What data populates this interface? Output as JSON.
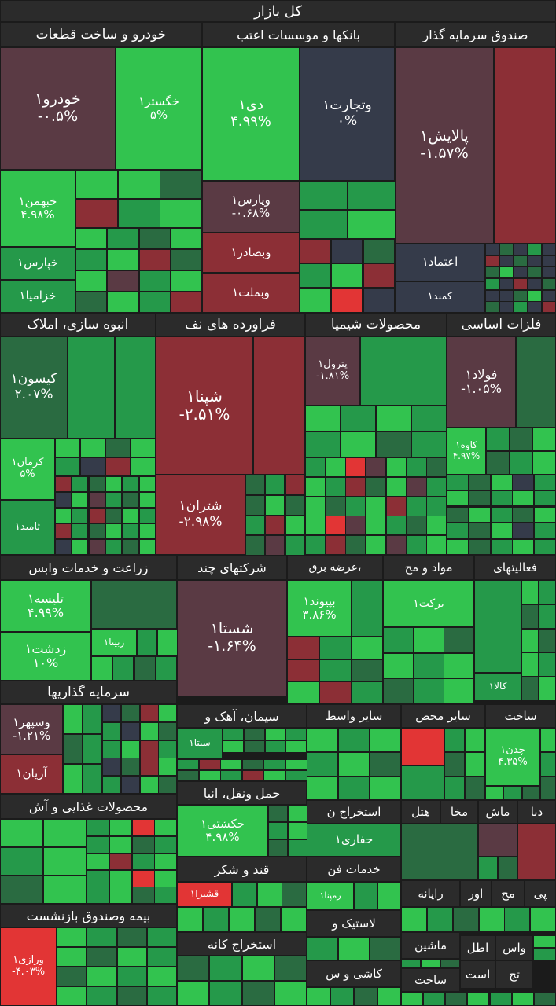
{
  "title": "کل بازار",
  "palette": {
    "grey": "#2b2b2b",
    "pos_strong": "#32c34f",
    "pos_mid": "#25994a",
    "pos_dark": "#2a6b41",
    "neutral": "#353b4a",
    "neg_soft": "#5a3a44",
    "neg_mid": "#8c2f36",
    "neg_strong": "#e23535"
  },
  "sectors": [
    {
      "id": "auto",
      "name": "خودرو و ساخت قطعات"
    },
    {
      "id": "banks",
      "name": "بانکها و موسسات اعتب"
    },
    {
      "id": "funds",
      "name": "صندوق سرمایه گذار"
    },
    {
      "id": "mass",
      "name": "انبوه سازی، املاک"
    },
    {
      "id": "oil",
      "name": "فراورده های نف"
    },
    {
      "id": "chem",
      "name": "محصولات شیمیا"
    },
    {
      "id": "metals",
      "name": "فلزات اساسی"
    },
    {
      "id": "agri",
      "name": "زراعت و خدمات وابس"
    },
    {
      "id": "multi",
      "name": "شرکتهای چند"
    },
    {
      "id": "power",
      "name": "،عرضه برق"
    },
    {
      "id": "material",
      "name": "مواد و مح"
    },
    {
      "id": "activities",
      "name": "فعالیتهای"
    },
    {
      "id": "invest",
      "name": "سرمایه گذاریها"
    },
    {
      "id": "cement",
      "name": "سیمان، آهک و"
    },
    {
      "id": "othermid",
      "name": "سایر واسط"
    },
    {
      "id": "otherprod",
      "name": "سایر محص"
    },
    {
      "id": "build",
      "name": "ساخت"
    },
    {
      "id": "transport",
      "name": "حمل ونقل، انبا"
    },
    {
      "id": "extract",
      "name": "استخراج ن"
    },
    {
      "id": "hotel",
      "name": "هتل"
    },
    {
      "id": "makha",
      "name": "مخا"
    },
    {
      "id": "mash",
      "name": "ماش"
    },
    {
      "id": "daba",
      "name": "دبا"
    },
    {
      "id": "food",
      "name": "محصولات غذایی و آش"
    },
    {
      "id": "sugar",
      "name": "قند و شکر"
    },
    {
      "id": "techserv",
      "name": "خدمات فن"
    },
    {
      "id": "computer",
      "name": "رایانه"
    },
    {
      "id": "or",
      "name": "اور"
    },
    {
      "id": "mah",
      "name": "مح"
    },
    {
      "id": "pi",
      "name": "پی"
    },
    {
      "id": "rubber",
      "name": "لاستیک و"
    },
    {
      "id": "machinery",
      "name": "ماشین"
    },
    {
      "id": "vas",
      "name": "واس"
    },
    {
      "id": "atl",
      "name": "اطل"
    },
    {
      "id": "insurance",
      "name": "بیمه وصندوق بازنشست"
    },
    {
      "id": "mine",
      "name": "استخراج کانه"
    },
    {
      "id": "tile",
      "name": "کاشی و س"
    },
    {
      "id": "const",
      "name": "ساخت"
    },
    {
      "id": "ast",
      "name": "است"
    },
    {
      "id": "taj",
      "name": "تج"
    }
  ],
  "stocks": [
    {
      "id": "khodro",
      "name": "خودرو۱",
      "pct": "-۰.۵%"
    },
    {
      "id": "khegostar",
      "name": "خگستر۱",
      "pct": "۵%"
    },
    {
      "id": "khbahman",
      "name": "خبهمن۱",
      "pct": "۴.۹۸%"
    },
    {
      "id": "khpars",
      "name": "خپارس۱",
      "pct": ""
    },
    {
      "id": "khzamia",
      "name": "خزامیا۱",
      "pct": ""
    },
    {
      "id": "dey",
      "name": "دی۱",
      "pct": "۴.۹۹%"
    },
    {
      "id": "vtejarat",
      "name": "وتجارت۱",
      "pct": "۰%"
    },
    {
      "id": "vpars",
      "name": "وپارس۱",
      "pct": "-۰.۶۸%"
    },
    {
      "id": "vbsadr",
      "name": "وبصادر۱",
      "pct": ""
    },
    {
      "id": "vbmellat",
      "name": "وبملت۱",
      "pct": ""
    },
    {
      "id": "palaesh",
      "name": "پالایش۱",
      "pct": "-۱.۵۷%"
    },
    {
      "id": "etemad",
      "name": "اعتماد۱",
      "pct": ""
    },
    {
      "id": "kamand",
      "name": "کمند۱",
      "pct": ""
    },
    {
      "id": "kisun",
      "name": "کیسون۱",
      "pct": "۲.۰۷%"
    },
    {
      "id": "kerman",
      "name": "کرمان۱",
      "pct": "۵%"
    },
    {
      "id": "tamid",
      "name": "ثامید۱",
      "pct": ""
    },
    {
      "id": "shepna",
      "name": "شپنا۱",
      "pct": "-۲.۵۱%"
    },
    {
      "id": "shetran",
      "name": "شتران۱",
      "pct": "-۲.۹۸%"
    },
    {
      "id": "petrol",
      "name": "پترول۱",
      "pct": "-۱.۸۱%"
    },
    {
      "id": "foolad",
      "name": "فولاد۱",
      "pct": "-۱.۰۵%"
    },
    {
      "id": "kaveh",
      "name": "کاوه۱",
      "pct": "۴.۹۷%"
    },
    {
      "id": "talise",
      "name": "تلیسه۱",
      "pct": "۴.۹۹%"
    },
    {
      "id": "zarsht",
      "name": "زدشت۱",
      "pct": "۱۰%"
    },
    {
      "id": "zinab",
      "name": "زبینا۱",
      "pct": ""
    },
    {
      "id": "shasta",
      "name": "شستا۱",
      "pct": "-۱.۶۴%"
    },
    {
      "id": "bpyvand",
      "name": "بپیوند۱",
      "pct": "۳.۸۶%"
    },
    {
      "id": "barekat",
      "name": "برکت۱",
      "pct": ""
    },
    {
      "id": "kala",
      "name": "کالا۱",
      "pct": ""
    },
    {
      "id": "vsepehr",
      "name": "وسپهر۱",
      "pct": "-۱.۲۱%"
    },
    {
      "id": "arian",
      "name": "آریان۱",
      "pct": ""
    },
    {
      "id": "sita",
      "name": "سیتا۱",
      "pct": ""
    },
    {
      "id": "chadn",
      "name": "چدن۱",
      "pct": "۴.۳۵%"
    },
    {
      "id": "hakashti",
      "name": "حکشتی۱",
      "pct": "۴.۹۸%"
    },
    {
      "id": "hafari",
      "name": "حفاری۱",
      "pct": ""
    },
    {
      "id": "qshira",
      "name": "قشیرا۱",
      "pct": ""
    },
    {
      "id": "rampna",
      "name": "رمپنا۱",
      "pct": ""
    },
    {
      "id": "varazi",
      "name": "ورازی۱",
      "pct": "-۴.۰۳%"
    }
  ]
}
